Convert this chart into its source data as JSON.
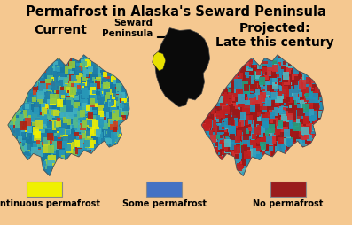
{
  "title": "Permafrost in Alaska's Seward Peninsula",
  "background_color": "#F5C890",
  "label_current": "Current",
  "label_projected": "Projected:\nLate this century",
  "label_locator": "Seward\nPeninsula",
  "legend_items": [
    {
      "label": "Continuous permafrost",
      "color": "#F0F000"
    },
    {
      "label": "Some permafrost",
      "color": "#4472C4"
    },
    {
      "label": "No permafrost",
      "color": "#9A1C1C"
    }
  ],
  "title_fontsize": 10.5,
  "label_fontsize": 9,
  "legend_fontsize": 7,
  "map1_colors": [
    "#1E7FA8",
    "#2898B8",
    "#40B0C0",
    "#50B890",
    "#90C840",
    "#C8D820",
    "#F0F000",
    "#D04020",
    "#B02010"
  ],
  "map1_weights": [
    0.22,
    0.18,
    0.14,
    0.12,
    0.1,
    0.07,
    0.07,
    0.06,
    0.04
  ],
  "map2_colors": [
    "#9A1818",
    "#C02020",
    "#D03030",
    "#2090B8",
    "#30A0C0",
    "#50B8C0",
    "#20A080"
  ],
  "map2_weights": [
    0.25,
    0.2,
    0.12,
    0.18,
    0.12,
    0.08,
    0.05
  ]
}
